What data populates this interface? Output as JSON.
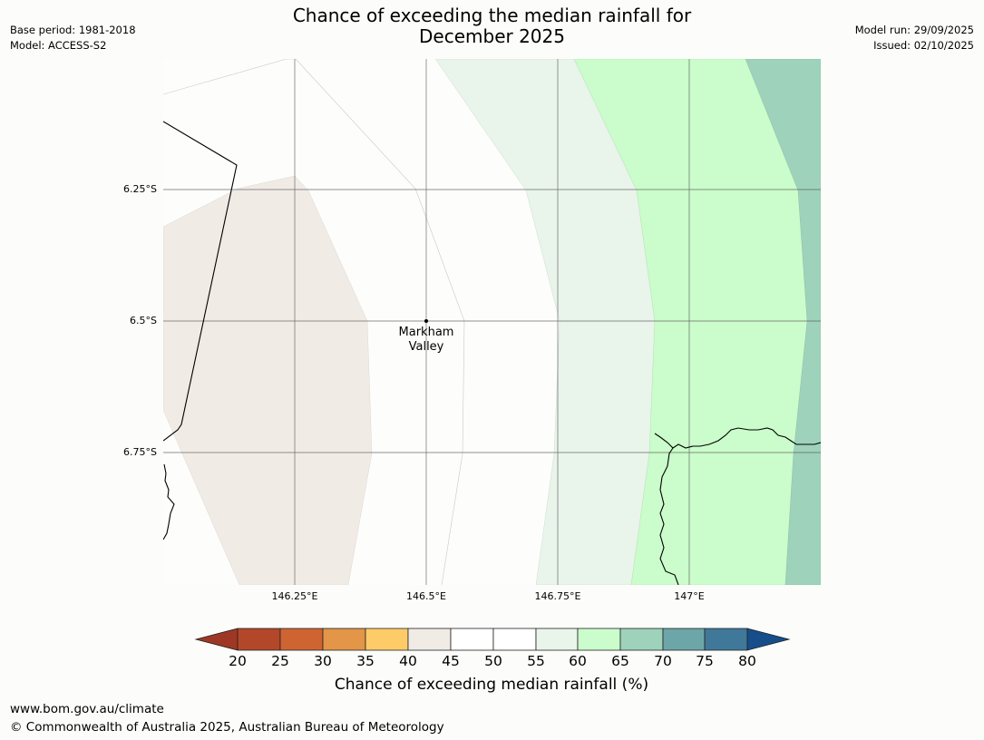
{
  "title": {
    "line1": "Chance of exceeding the median rainfall for",
    "line2": "December 2025"
  },
  "meta": {
    "base_period": "Base period: 1981-2018",
    "model": "Model: ACCESS-S2",
    "model_run": "Model run: 29/09/2025",
    "issued": "Issued: 02/10/2025"
  },
  "map": {
    "lat_labels": [
      "6.25°S",
      "6.5°S",
      "6.75°S"
    ],
    "lon_labels": [
      "146.25°E",
      "146.5°E",
      "146.75°E",
      "147°E"
    ],
    "place": {
      "name_line1": "Markham",
      "name_line2": "Valley"
    },
    "region_colors": {
      "band_40_45": "#f1ebe6",
      "band_45_55": "#fdfefc",
      "band_55_60": "#e9f4ea",
      "band_60_65": "#cbfccb",
      "band_65_70": "#9ed2bb"
    }
  },
  "colorbar": {
    "ticks": [
      "20",
      "25",
      "30",
      "35",
      "40",
      "45",
      "50",
      "55",
      "60",
      "65",
      "70",
      "75",
      "80"
    ],
    "colors": [
      "#9e3824",
      "#b3472a",
      "#cf6433",
      "#e39548",
      "#fecb69",
      "#f1ebe6",
      "#ffffff",
      "#ffffff",
      "#e9f4ea",
      "#cbfccb",
      "#9ed2bb",
      "#6da6a8",
      "#3f7899",
      "#154e8a"
    ],
    "label": "Chance of exceeding median rainfall (%)"
  },
  "footer": {
    "url": "www.bom.gov.au/climate",
    "copyright": "© Commonwealth of Australia 2025, Australian Bureau of Meteorology"
  }
}
